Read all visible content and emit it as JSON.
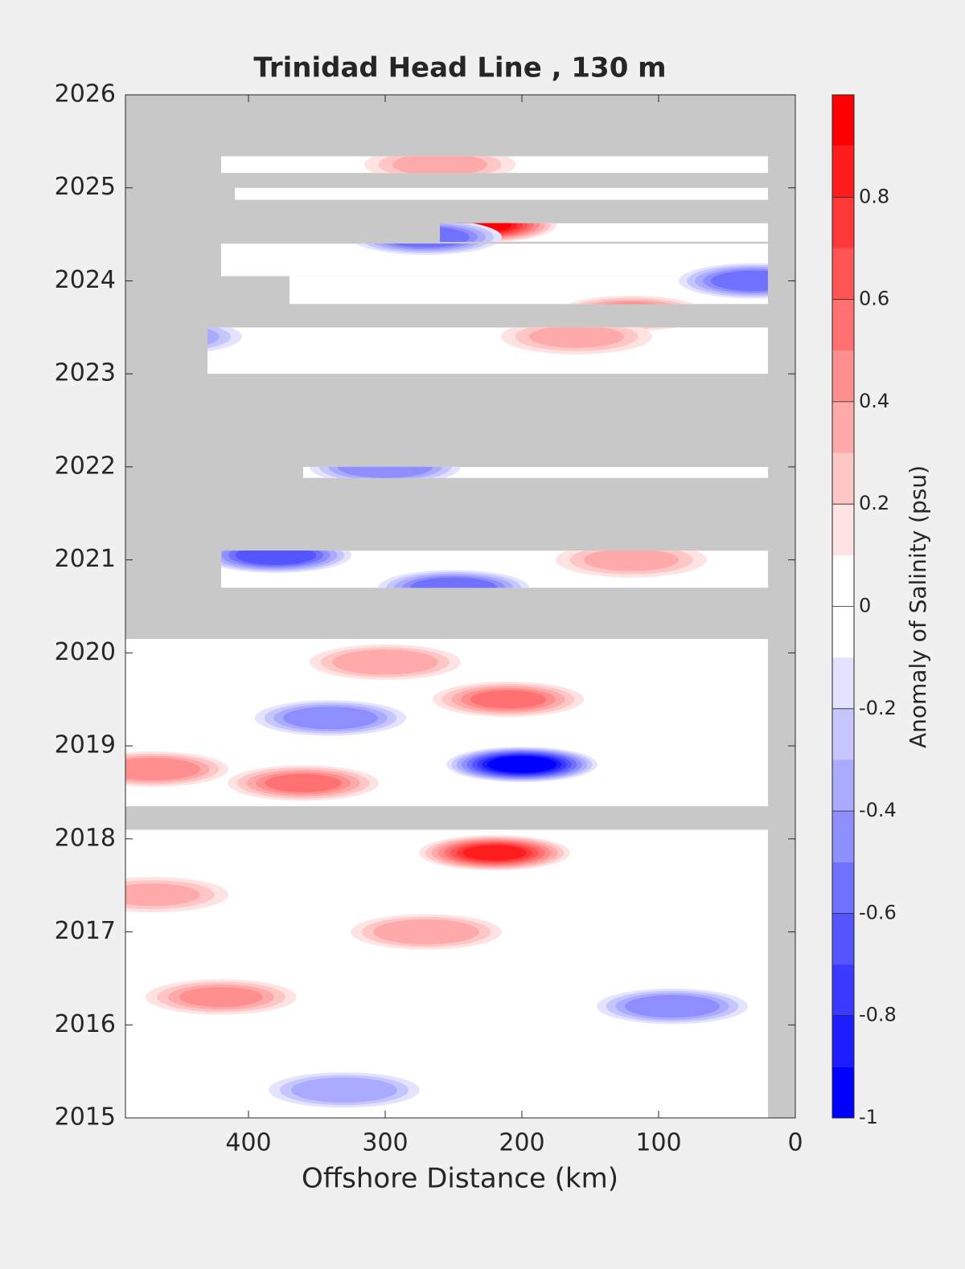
{
  "chart_data": {
    "type": "contour",
    "title": "Trinidad Head Line , 130 m",
    "x_label": "Offshore Distance (km)",
    "colorbar_label": "Anomaly of Salinity (psu)",
    "xlim": [
      490,
      0
    ],
    "xticks": [
      400,
      300,
      200,
      100,
      0
    ],
    "ylim": [
      2015,
      2026
    ],
    "yticks": [
      2015,
      2016,
      2017,
      2018,
      2019,
      2020,
      2021,
      2022,
      2023,
      2024,
      2025,
      2026
    ],
    "no_data_color": "#c8c8c8",
    "colorbar": {
      "lim": [
        -1,
        1
      ],
      "levels": [
        -1,
        -0.9,
        -0.8,
        -0.7,
        -0.6,
        -0.5,
        -0.4,
        -0.3,
        -0.2,
        -0.1,
        0,
        0.1,
        0.2,
        0.3,
        0.4,
        0.5,
        0.6,
        0.7,
        0.8,
        0.9,
        1
      ],
      "colors": [
        "#0000ff",
        "#1c1cff",
        "#3939ff",
        "#5555ff",
        "#7171ff",
        "#8e8eff",
        "#aaaaff",
        "#c6c6ff",
        "#e3e3ff",
        "#ffffff",
        "#ffffff",
        "#ffe3e3",
        "#ffc6c6",
        "#ffaaaa",
        "#ff8e8e",
        "#ff7171",
        "#ff5555",
        "#ff3939",
        "#ff1c1c",
        "#ff0000"
      ],
      "ticks": [
        -1,
        -0.8,
        -0.6,
        -0.4,
        -0.2,
        0,
        0.2,
        0.4,
        0.6,
        0.8
      ]
    },
    "coverage": [
      [
        490,
        20,
        2015,
        2018.1
      ],
      [
        490,
        20,
        2018.35,
        2020.15
      ],
      [
        420,
        20,
        2020.7,
        2021.1
      ],
      [
        360,
        20,
        2021.88,
        2022.0
      ],
      [
        430,
        20,
        2023.0,
        2023.5
      ],
      [
        370,
        20,
        2023.75,
        2024.05
      ],
      [
        420,
        20,
        2024.05,
        2024.4
      ],
      [
        260,
        20,
        2024.42,
        2024.62
      ],
      [
        410,
        20,
        2024.87,
        2025.0
      ],
      [
        420,
        20,
        2025.16,
        2025.34
      ]
    ],
    "features": {
      "x": [
        200,
        360,
        470,
        230,
        380,
        120,
        30,
        270,
        210,
        90,
        340,
        330,
        250,
        220,
        300,
        460,
        260,
        300,
        470,
        420,
        270,
        120,
        160
      ],
      "y": [
        2018.8,
        2018.6,
        2018.75,
        2024.6,
        2021.05,
        2023.65,
        2024.0,
        2024.47,
        2019.5,
        2016.2,
        2019.3,
        2015.3,
        2020.7,
        2017.85,
        2019.9,
        2023.4,
        2025.25,
        2022.0,
        2017.4,
        2016.3,
        2017.0,
        2021.0,
        2023.4
      ],
      "values": [
        -0.95,
        0.5,
        0.45,
        0.9,
        -0.7,
        0.5,
        -0.6,
        -0.55,
        0.5,
        -0.5,
        -0.5,
        -0.4,
        -0.55,
        0.8,
        0.35,
        -0.35,
        0.3,
        -0.5,
        0.3,
        0.4,
        0.35,
        0.3,
        0.3
      ]
    }
  }
}
